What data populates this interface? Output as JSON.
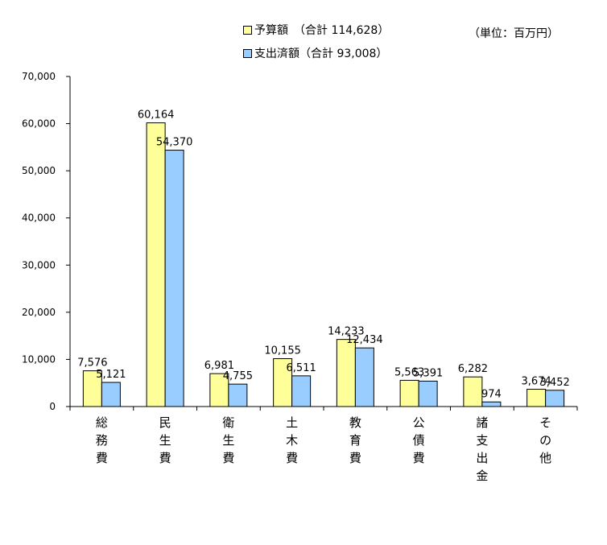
{
  "unit_label": "（単位：百万円）",
  "legend": [
    {
      "label": "予算額　（合計 114,628）",
      "color": "#ffff99"
    },
    {
      "label": "支出済額（合計 93,008）",
      "color": "#99ccff"
    }
  ],
  "chart_data": {
    "type": "bar",
    "categories": [
      "総務費",
      "民生費",
      "衛生費",
      "土木費",
      "教育費",
      "公債費",
      "諸支出金",
      "その他"
    ],
    "series": [
      {
        "name": "予算額",
        "values": [
          7576,
          60164,
          6981,
          10155,
          14233,
          5563,
          6282,
          3674
        ],
        "color": "#ffff99"
      },
      {
        "name": "支出済額",
        "values": [
          5121,
          54370,
          4755,
          6511,
          12434,
          5391,
          974,
          3452
        ],
        "color": "#99ccff"
      }
    ],
    "ylim": [
      0,
      70000
    ],
    "yticks": [
      0,
      10000,
      20000,
      30000,
      40000,
      50000,
      60000,
      70000
    ],
    "ytick_labels": [
      "0",
      "10,000",
      "20,000",
      "30,000",
      "40,000",
      "50,000",
      "60,000",
      "70,000"
    ],
    "value_labels": [
      [
        "7,576",
        "60,164",
        "6,981",
        "10,155",
        "14,233",
        "5,563",
        "6,282",
        "3,674"
      ],
      [
        "5,121",
        "54,370",
        "4,755",
        "6,511",
        "12,434",
        "5,391",
        "974",
        "3,452"
      ]
    ],
    "grid": false,
    "legend_position": "top"
  }
}
